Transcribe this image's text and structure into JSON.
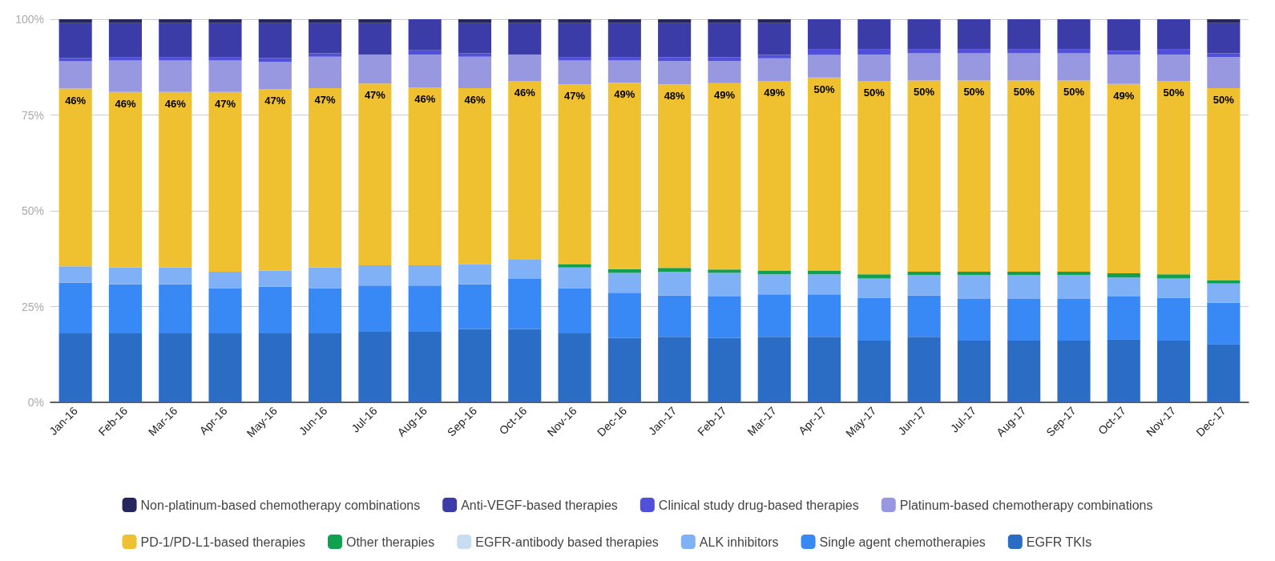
{
  "chart_data": {
    "type": "bar",
    "stacked": true,
    "categories": [
      "Jan-16",
      "Feb-16",
      "Mar-16",
      "Apr-16",
      "May-16",
      "Jun-16",
      "Jul-16",
      "Aug-16",
      "Sep-16",
      "Oct-16",
      "Nov-16",
      "Dec-16",
      "Jan-17",
      "Feb-17",
      "Mar-17",
      "Apr-17",
      "May-17",
      "Jun-17",
      "Jul-17",
      "Aug-17",
      "Sep-17",
      "Oct-17",
      "Nov-17",
      "Dec-17"
    ],
    "ylim": [
      0,
      100
    ],
    "yticks": [
      {
        "value": 0,
        "label": "0%"
      },
      {
        "value": 25,
        "label": "25%"
      },
      {
        "value": 50,
        "label": "50%"
      },
      {
        "value": 75,
        "label": "75%"
      },
      {
        "value": 100,
        "label": "100%"
      }
    ],
    "grid": "y",
    "legend": "bottom",
    "series": [
      {
        "name": "EGFR TKIs",
        "color": "#2b6cc4",
        "values": [
          18,
          18,
          18,
          18,
          18,
          18,
          18.4,
          18.4,
          19.1,
          19.1,
          18,
          16.8,
          17.1,
          16.8,
          17.1,
          17.1,
          16.1,
          17.1,
          16.1,
          16.1,
          16.1,
          16.5,
          16.1,
          15.2
        ]
      },
      {
        "name": "Single agent chemotherapies",
        "color": "#3888f5",
        "values": [
          13.2,
          12.8,
          12.8,
          11.8,
          12.2,
          11.8,
          12.1,
          12.1,
          11.7,
          13.1,
          11.8,
          11.8,
          10.8,
          10.8,
          11.1,
          11.1,
          11.2,
          10.8,
          10.9,
          10.9,
          10.9,
          11.1,
          11.2,
          10.8
        ]
      },
      {
        "name": "ALK inhibitors",
        "color": "#80b0f5",
        "values": [
          4.3,
          4.4,
          4.4,
          4.3,
          4.2,
          5.4,
          5.3,
          5.3,
          5.3,
          5.2,
          5.4,
          5.2,
          6.2,
          6.2,
          5.2,
          5.2,
          5,
          5.3,
          6.2,
          6.2,
          6.2,
          5,
          5,
          5
        ]
      },
      {
        "name": "EGFR-antibody based therapies",
        "color": "#c8ddf0",
        "values": [
          0,
          0,
          0,
          0,
          0,
          0,
          0,
          0,
          0,
          0,
          0,
          0,
          0,
          0,
          0,
          0,
          0,
          0,
          0,
          0,
          0,
          0,
          0,
          0
        ]
      },
      {
        "name": "Other therapies",
        "color": "#10a050",
        "values": [
          0,
          0,
          0,
          0,
          0,
          0,
          0,
          0,
          0,
          0,
          0.9,
          1,
          1,
          0.9,
          1,
          1,
          1.1,
          0.9,
          0.9,
          0.9,
          0.9,
          1.1,
          1.1,
          0.9
        ]
      },
      {
        "name": "PD-1/PD-L1-based therapies",
        "color": "#efc030",
        "values": [
          46.4,
          45.8,
          45.8,
          46.9,
          47.4,
          46.8,
          47.4,
          46.4,
          45.9,
          46.4,
          46.9,
          48.6,
          47.9,
          48.6,
          49.4,
          50.4,
          50.4,
          49.9,
          49.9,
          49.9,
          49.9,
          49.4,
          50.4,
          50.1
        ],
        "value_labels": [
          "46%",
          "46%",
          "46%",
          "47%",
          "47%",
          "47%",
          "47%",
          "46%",
          "46%",
          "46%",
          "47%",
          "49%",
          "48%",
          "49%",
          "49%",
          "50%",
          "50%",
          "50%",
          "50%",
          "50%",
          "50%",
          "49%",
          "50%",
          "50%"
        ]
      },
      {
        "name": "Platinum-based chemotherapy combinations",
        "color": "#9898e0",
        "values": [
          7.1,
          8.2,
          8.2,
          8.2,
          7.1,
          8.2,
          7.6,
          8.6,
          8.2,
          7,
          6.2,
          5.8,
          6.1,
          5.8,
          6,
          5.9,
          7,
          7.1,
          7.1,
          7.1,
          7.1,
          7.7,
          7,
          8.1
        ]
      },
      {
        "name": "Clinical study drug-based therapies",
        "color": "#5050dc",
        "values": [
          0.9,
          0.8,
          0.8,
          0.8,
          1,
          0.9,
          0,
          1.1,
          0.9,
          0,
          0.8,
          0.8,
          1,
          1,
          0.9,
          1.4,
          1.3,
          1,
          1,
          1,
          1,
          1,
          1.3,
          1
        ]
      },
      {
        "name": "Anti-VEGF-based therapies",
        "color": "#3c3ca8",
        "values": [
          9.1,
          9,
          9,
          9,
          9.1,
          7.9,
          8.2,
          8.1,
          7.9,
          8.2,
          9,
          9,
          8.9,
          8.9,
          8.3,
          7.9,
          7.9,
          7.9,
          7.9,
          7.9,
          7.9,
          8.2,
          7.9,
          7.9
        ]
      },
      {
        "name": "Non-platinum-based chemotherapy combinations",
        "color": "#25265e",
        "values": [
          1,
          1,
          1,
          1,
          1,
          1,
          1,
          0,
          1,
          1,
          1,
          1,
          1,
          1,
          1,
          0,
          0,
          0,
          0,
          0,
          0,
          0,
          0,
          1
        ]
      }
    ]
  }
}
